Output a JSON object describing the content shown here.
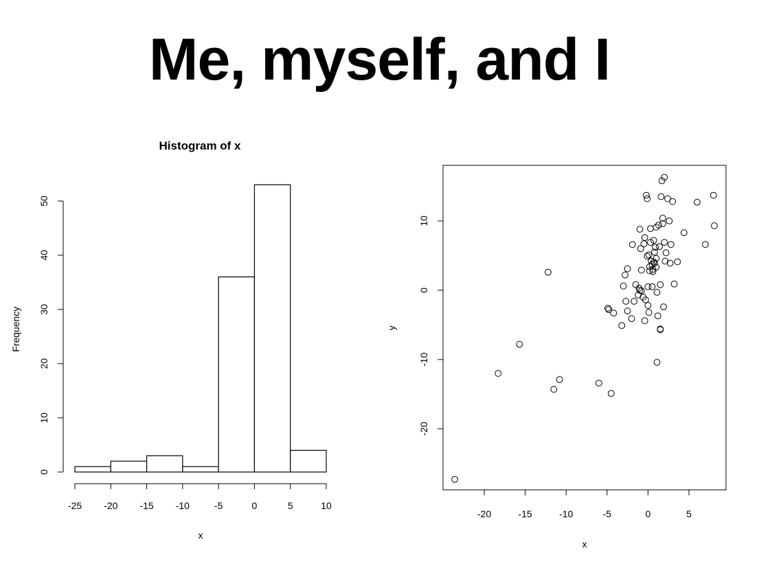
{
  "slide": {
    "title": "Me, myself, and I"
  },
  "chart_data": [
    {
      "type": "bar",
      "title": "Histogram of x",
      "xlabel": "x",
      "ylabel": "Frequency",
      "bins": [
        [
          -25,
          -20
        ],
        [
          -20,
          -15
        ],
        [
          -15,
          -10
        ],
        [
          -10,
          -5
        ],
        [
          -5,
          0
        ],
        [
          0,
          5
        ],
        [
          5,
          10
        ]
      ],
      "values": [
        1,
        2,
        3,
        1,
        36,
        53,
        4
      ],
      "xlim": [
        -25,
        10
      ],
      "ylim": [
        0,
        55
      ],
      "xticks": [
        -25,
        -20,
        -15,
        -10,
        -5,
        0,
        5,
        10
      ],
      "yticks": [
        0,
        10,
        20,
        30,
        40,
        50
      ],
      "grid": false
    },
    {
      "type": "scatter",
      "title": "",
      "xlabel": "x",
      "ylabel": "y",
      "xlim": [
        -24.5,
        9.5
      ],
      "ylim": [
        -29,
        18
      ],
      "xticks": [
        -20,
        -15,
        -10,
        -5,
        0,
        5
      ],
      "yticks": [
        -20,
        -10,
        0,
        10
      ],
      "grid": false,
      "x": [
        -23.6,
        -18.3,
        -15.7,
        -12.2,
        -11.5,
        -10.8,
        -6,
        -4.5,
        -4.9,
        -4.8,
        -4.2,
        -3.2,
        -3,
        -2.8,
        -2.7,
        -2.5,
        -2.5,
        -2,
        -1.9,
        -1.7,
        -1.5,
        -1.2,
        -1.1,
        -1,
        -1,
        -0.9,
        -0.8,
        -0.8,
        -0.6,
        -0.5,
        -0.4,
        -0.4,
        -0.3,
        -0.2,
        -0.1,
        -0.1,
        0,
        0,
        0.1,
        0.1,
        0.2,
        0.2,
        0.3,
        0.3,
        0.4,
        0.5,
        0.5,
        0.6,
        0.6,
        0.7,
        0.7,
        0.8,
        0.8,
        0.9,
        1,
        1,
        1,
        1.1,
        1.1,
        1.2,
        1.3,
        1.4,
        1.5,
        1.5,
        1.5,
        1.6,
        1.7,
        1.8,
        1.8,
        1.9,
        2,
        2,
        2.1,
        2.2,
        2.4,
        2.6,
        2.7,
        2.8,
        3,
        3.2,
        3.6,
        4.4,
        6,
        7,
        8,
        8.1
      ],
      "y": [
        -27.3,
        -12,
        -7.8,
        2.6,
        -14.3,
        -12.9,
        -13.4,
        -14.9,
        -2.6,
        -2.8,
        -3.3,
        -5.1,
        0.6,
        2.2,
        -1.6,
        -3,
        3.1,
        -4.1,
        6.6,
        -1.6,
        0.8,
        -0.7,
        0.3,
        0,
        8.8,
        6,
        -0.1,
        2.9,
        -1,
        6.7,
        7.6,
        -4.4,
        -1.4,
        13.7,
        13.2,
        4.9,
        -2.2,
        0.5,
        -3.2,
        5.1,
        3.4,
        2.8,
        8.9,
        6.9,
        4.2,
        3.7,
        0.5,
        3,
        2.7,
        4.1,
        7.2,
        3.9,
        5.5,
        6.2,
        4.6,
        3.3,
        9.1,
        -0.3,
        -10.4,
        -3.7,
        9.4,
        6.3,
        0.8,
        -5.6,
        -5.7,
        13.5,
        15.8,
        10.4,
        9.6,
        -2.4,
        16.3,
        6.9,
        4.2,
        5.4,
        13.2,
        10,
        3.9,
        6.6,
        12.8,
        0.9,
        4.1,
        8.3,
        12.7,
        6.6,
        13.7,
        9.3
      ]
    }
  ]
}
